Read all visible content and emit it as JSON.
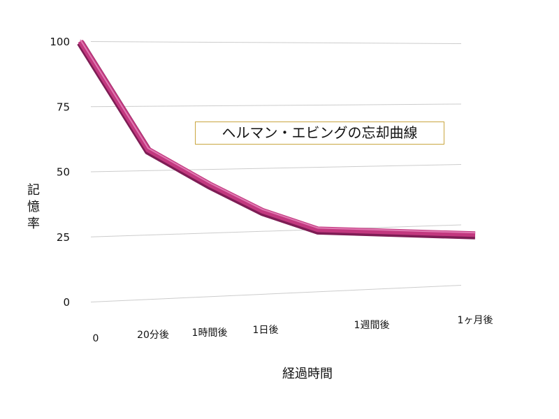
{
  "chart_data": {
    "type": "line",
    "title": "ヘルマン・エビングの忘却曲線",
    "xlabel": "経過時間",
    "ylabel": "記憶率",
    "categories": [
      "0",
      "20分後",
      "1時間後",
      "1日後",
      "1週間後",
      "1ヶ月後"
    ],
    "series": [
      {
        "values": [
          100,
          58,
          44,
          33,
          25,
          21
        ]
      }
    ],
    "ylim": [
      0,
      100
    ],
    "yticks": [
      0,
      25,
      50,
      75,
      100
    ],
    "grid": true,
    "colors": {
      "line": "#c2387f",
      "line_dark": "#7e1d55",
      "line_light": "#e07ab2",
      "grid": "#cccccc"
    }
  }
}
